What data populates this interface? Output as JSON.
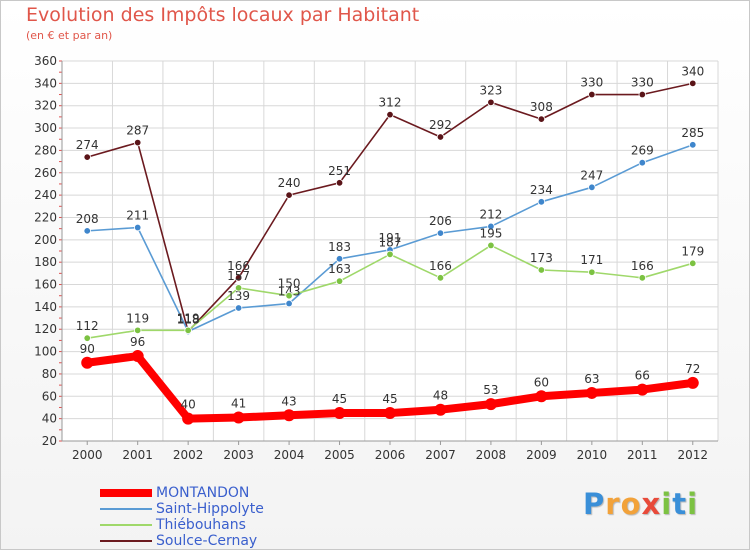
{
  "title": "Evolution des Impôts locaux par Habitant",
  "subtitle": "(en € et par an)",
  "logo": {
    "text": "Proxiti",
    "letters": [
      {
        "ch": "P",
        "color": "#3a8fd8"
      },
      {
        "ch": "r",
        "color": "#f2a23a"
      },
      {
        "ch": "o",
        "color": "#f2a23a"
      },
      {
        "ch": "x",
        "color": "#e84a3a"
      },
      {
        "ch": "i",
        "color": "#7cc242"
      },
      {
        "ch": "t",
        "color": "#3a8fd8"
      },
      {
        "ch": "i",
        "color": "#7cc242"
      }
    ]
  },
  "chart_data": {
    "type": "line",
    "title": "Evolution des Impôts locaux par Habitant",
    "subtitle": "(en € et par an)",
    "x": [
      "2000",
      "2001",
      "2002",
      "2003",
      "2004",
      "2005",
      "2006",
      "2007",
      "2008",
      "2009",
      "2010",
      "2011",
      "2012"
    ],
    "ylim": [
      20,
      360
    ],
    "yticks": [
      20,
      40,
      60,
      80,
      100,
      120,
      140,
      160,
      180,
      200,
      220,
      240,
      260,
      280,
      300,
      320,
      340,
      360
    ],
    "grid": true,
    "legend_position": "bottom-left",
    "series": [
      {
        "name": "Soulce-Cernay",
        "color": "#6b1a1f",
        "point_color": "#5a1418",
        "values": [
          274,
          287,
          118,
          166,
          240,
          251,
          312,
          292,
          323,
          308,
          330,
          330,
          340
        ]
      },
      {
        "name": "Saint-Hippolyte",
        "color": "#5a9bd4",
        "point_color": "#3f86cc",
        "values": [
          208,
          211,
          118,
          139,
          143,
          183,
          191,
          206,
          212,
          234,
          247,
          269,
          285
        ]
      },
      {
        "name": "Thiébouhans",
        "color": "#9fd86a",
        "point_color": "#7cc242",
        "values": [
          112,
          119,
          119,
          157,
          150,
          163,
          187,
          166,
          195,
          173,
          171,
          166,
          179
        ]
      },
      {
        "name": "MONTANDON",
        "color": "#ff0000",
        "point_color": "#ff0000",
        "values": [
          90,
          96,
          40,
          41,
          43,
          45,
          45,
          48,
          53,
          60,
          63,
          66,
          72
        ]
      }
    ],
    "legend": [
      {
        "name": "MONTANDON",
        "color": "#ff0000"
      },
      {
        "name": "Saint-Hippolyte",
        "color": "#5a9bd4"
      },
      {
        "name": "Thiébouhans",
        "color": "#9fd86a"
      },
      {
        "name": "Soulce-Cernay",
        "color": "#6b1a1f"
      }
    ]
  }
}
